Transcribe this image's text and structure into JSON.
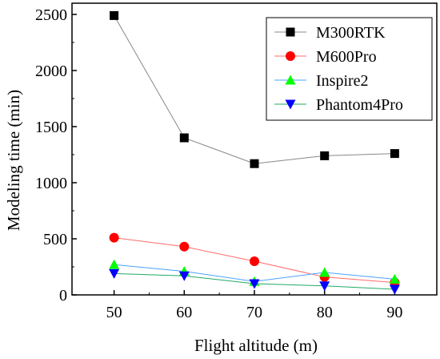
{
  "chart_data": {
    "type": "line",
    "xlabel": "Flight altitude (m)",
    "ylabel": "Modeling time (min)",
    "x": [
      50,
      60,
      70,
      80,
      90
    ],
    "xlim": [
      44,
      96
    ],
    "ylim": [
      0,
      2600
    ],
    "xticks": [
      50,
      60,
      70,
      80,
      90
    ],
    "yticks": [
      0,
      500,
      1000,
      1500,
      2000,
      2500
    ],
    "grid": false,
    "legend_position": "top-right",
    "series": [
      {
        "name": "M300RTK",
        "values": [
          2490,
          1400,
          1170,
          1240,
          1260
        ],
        "color": "#000000",
        "marker": "square"
      },
      {
        "name": "M600Pro",
        "values": [
          510,
          430,
          300,
          160,
          110
        ],
        "color": "#ff0000",
        "marker": "circle"
      },
      {
        "name": "Inspire2",
        "values": [
          270,
          210,
          120,
          200,
          140
        ],
        "color": "#00ff00",
        "marker": "triangle-up"
      },
      {
        "name": "Phantom4Pro",
        "values": [
          190,
          170,
          100,
          80,
          50
        ],
        "color": "#0000ff",
        "marker": "triangle-down"
      }
    ],
    "line_colors": {
      "M300RTK": "#888888",
      "M600Pro": "#ff6b6b",
      "Inspire2": "#4aa3ff",
      "Phantom4Pro": "#22aa66"
    }
  }
}
